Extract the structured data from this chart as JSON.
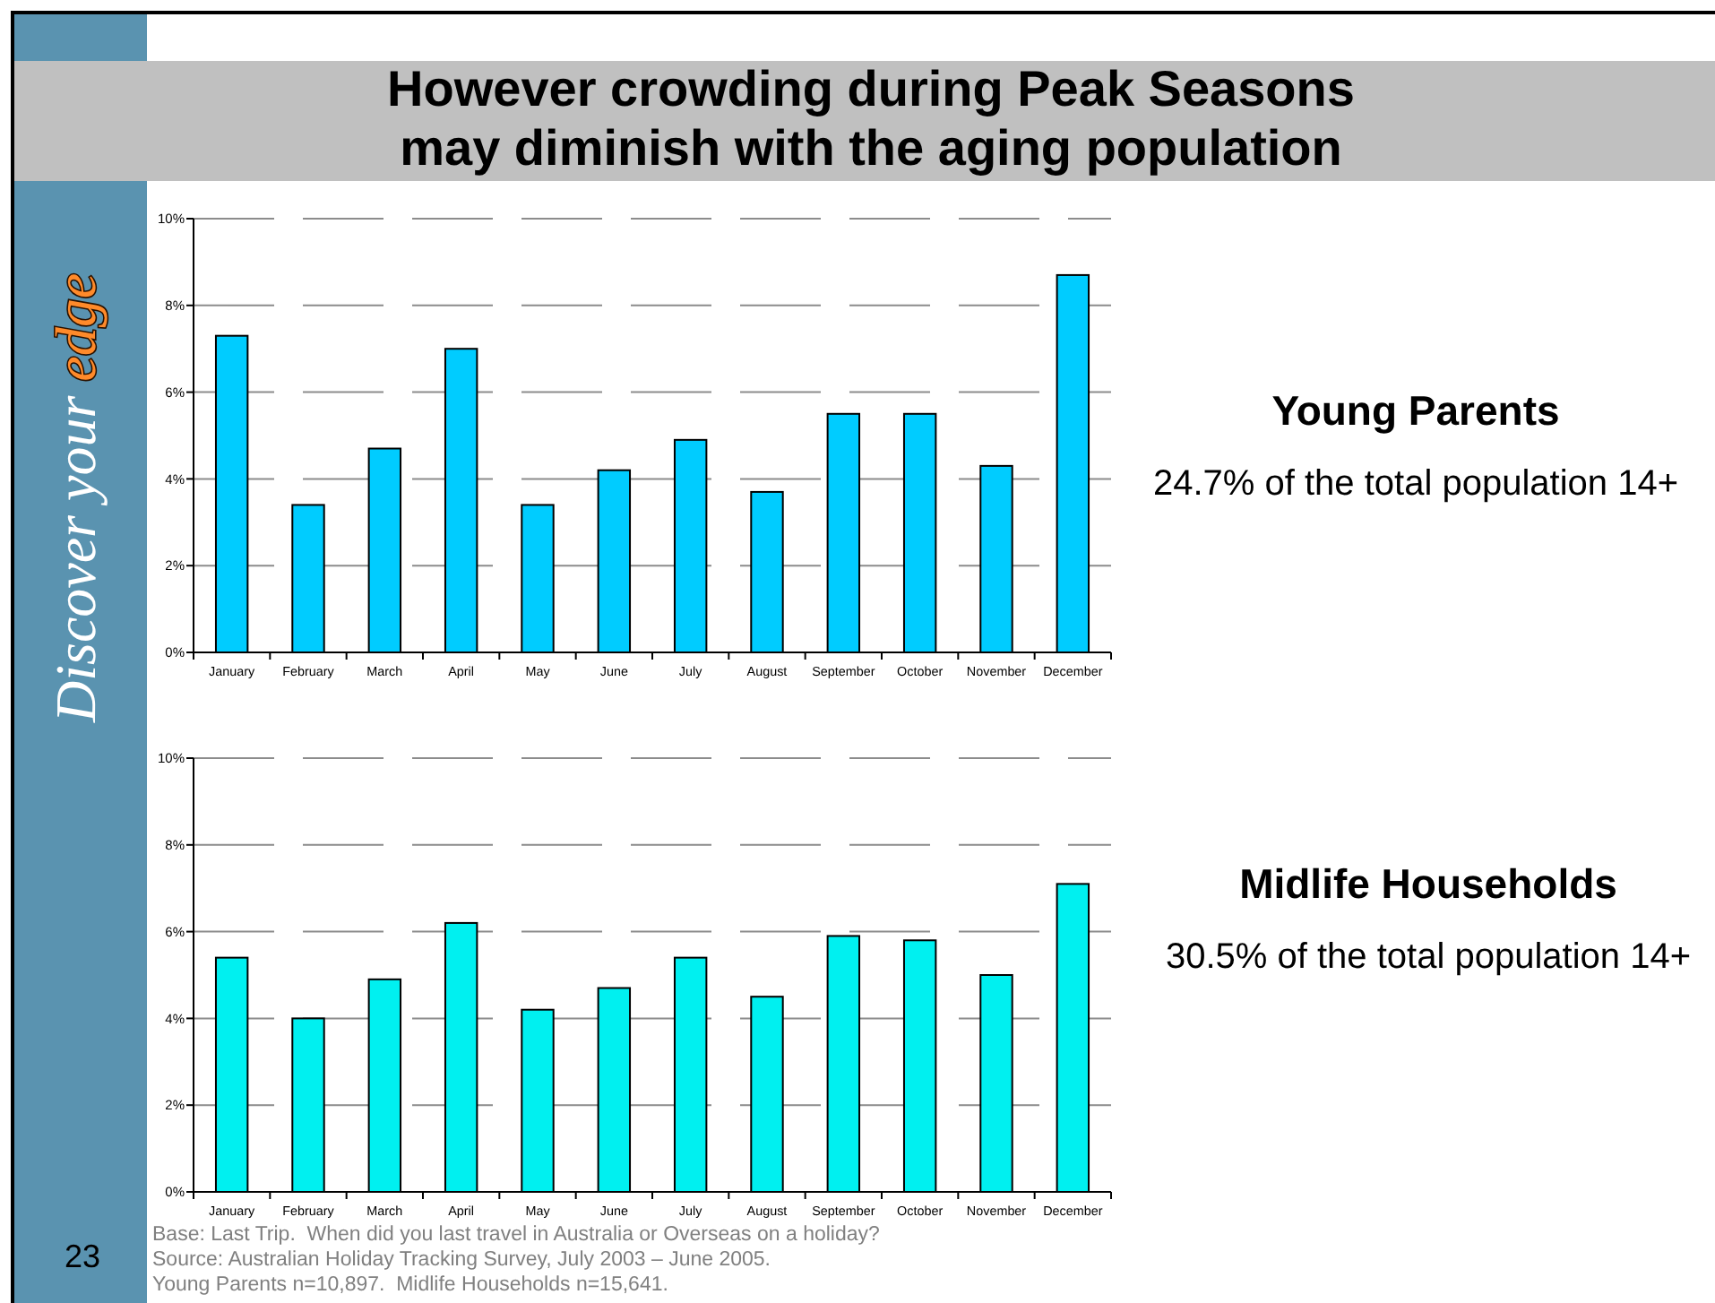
{
  "chart_data": [
    {
      "type": "bar",
      "title": "However crowding during Peak Seasons\nmay diminish with the aging population",
      "categories": [
        "January",
        "February",
        "March",
        "April",
        "May",
        "June",
        "July",
        "August",
        "September",
        "October",
        "November",
        "December"
      ],
      "values": [
        7.3,
        3.4,
        4.7,
        7.0,
        3.4,
        4.2,
        4.9,
        3.7,
        5.5,
        5.5,
        4.3,
        8.7
      ],
      "color": "#00ccff",
      "ylim": [
        0,
        10
      ],
      "yticks": [
        {
          "value": 0,
          "label": "0%"
        },
        {
          "value": 2,
          "label": "2%"
        },
        {
          "value": 4,
          "label": "4%"
        },
        {
          "value": 6,
          "label": "6%"
        },
        {
          "value": 8,
          "label": "8%"
        },
        {
          "value": 10,
          "label": "10%"
        }
      ],
      "grid": "y",
      "annotations": [
        "Young Parents",
        "24.7% of the total population 14+",
        "Discover your edge"
      ]
    },
    {
      "type": "bar",
      "categories": [
        "January",
        "February",
        "March",
        "April",
        "May",
        "June",
        "July",
        "August",
        "September",
        "October",
        "November",
        "December"
      ],
      "values": [
        5.4,
        4.0,
        4.9,
        6.2,
        4.2,
        4.7,
        5.4,
        4.5,
        5.9,
        5.8,
        5.0,
        7.1
      ],
      "color": "#00f0f0",
      "ylim": [
        0,
        10
      ],
      "yticks": [
        {
          "value": 0,
          "label": "0%"
        },
        {
          "value": 2,
          "label": "2%"
        },
        {
          "value": 4,
          "label": "4%"
        },
        {
          "value": 6,
          "label": "6%"
        },
        {
          "value": 8,
          "label": "8%"
        },
        {
          "value": 10,
          "label": "10%"
        }
      ],
      "grid": "y",
      "annotations": [
        "Midlife Households",
        "30.5% of the total population 14+",
        "23",
        "Base: Last Trip.  When did you last travel in Australia or Overseas on a holiday?",
        "Source: Australian Holiday Tracking Survey, July 2003 – June 2005.",
        "Young Parents n=10,897.  Midlife Households n=15,641."
      ]
    }
  ]
}
